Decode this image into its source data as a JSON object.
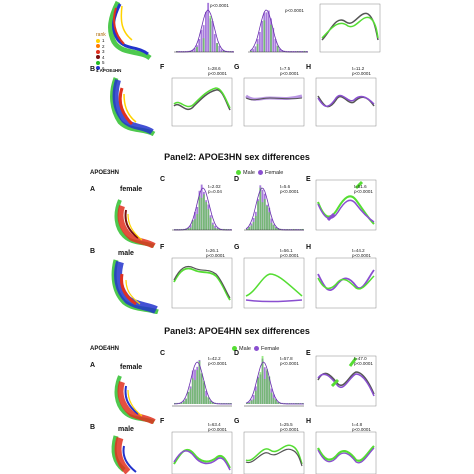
{
  "colors": {
    "green": "#55dd33",
    "purple": "#8a4fd0",
    "gray": "#555555"
  },
  "panel1": {
    "row_b_label": "B",
    "row_b_sub": "4 APOE4HN",
    "rank_title": "rank",
    "ranks": [
      {
        "n": "1",
        "color": "#ffd300"
      },
      {
        "n": "2",
        "color": "#ff7a00"
      },
      {
        "n": "3",
        "color": "#e0301e"
      },
      {
        "n": "4",
        "color": "#7a1010"
      },
      {
        "n": "5",
        "color": "#22bb22"
      },
      {
        "n": "6",
        "color": "#2233cc"
      }
    ],
    "stats_top": [
      "p<0.0001",
      "p<0.0001"
    ],
    "labels": {
      "F": "F",
      "G": "G",
      "H": "H"
    },
    "stats_F": [
      "t=28.6",
      "p<0.0001"
    ],
    "stats_G": [
      "t=7.5",
      "p<0.0001"
    ],
    "stats_H": [
      "t=11.2",
      "p<0.0001"
    ]
  },
  "panel2": {
    "title": "Panel2: APOE3HN sex differences",
    "group": "APOE3HN",
    "legend": {
      "male": "Male",
      "female": "Female"
    },
    "rowA": {
      "letter": "A",
      "sex": "female"
    },
    "rowB": {
      "letter": "B",
      "sex": "male"
    },
    "labels": {
      "C": "C",
      "D": "D",
      "E": "E",
      "F": "F",
      "G": "G",
      "H": "H"
    },
    "stats_C": [
      "t=2.02",
      "p=0.04"
    ],
    "stats_D": [
      "t=5.6",
      "p<0.0001"
    ],
    "stats_E": [
      "t=51.6",
      "p<0.0001"
    ],
    "stats_F": [
      "t=26.1",
      "p<0.0001"
    ],
    "stats_G": [
      "t=56.1",
      "p<0.0001"
    ],
    "stats_H": [
      "t=44.2",
      "p<0.0001"
    ]
  },
  "panel3": {
    "title": "Panel3: APOE4HN sex differences",
    "group": "APOE4HN",
    "legend": {
      "male": "Male",
      "female": "Female"
    },
    "rowA": {
      "letter": "A",
      "sex": "female"
    },
    "rowB": {
      "letter": "B",
      "sex": "male"
    },
    "labels": {
      "C": "C",
      "D": "D",
      "E": "E",
      "F": "F",
      "G": "G",
      "H": "H"
    },
    "stats_C": [
      "t=42.2",
      "p<0.0001"
    ],
    "stats_D": [
      "t=57.8",
      "p<0.0001"
    ],
    "stats_E": [
      "t=47.0",
      "p<0.0001"
    ],
    "stats_F": [
      "t=63.4",
      "p<0.0001"
    ],
    "stats_G": [
      "t=25.5",
      "p<0.0001"
    ],
    "stats_H": [
      "t=4.8",
      "p<0.0001"
    ]
  }
}
